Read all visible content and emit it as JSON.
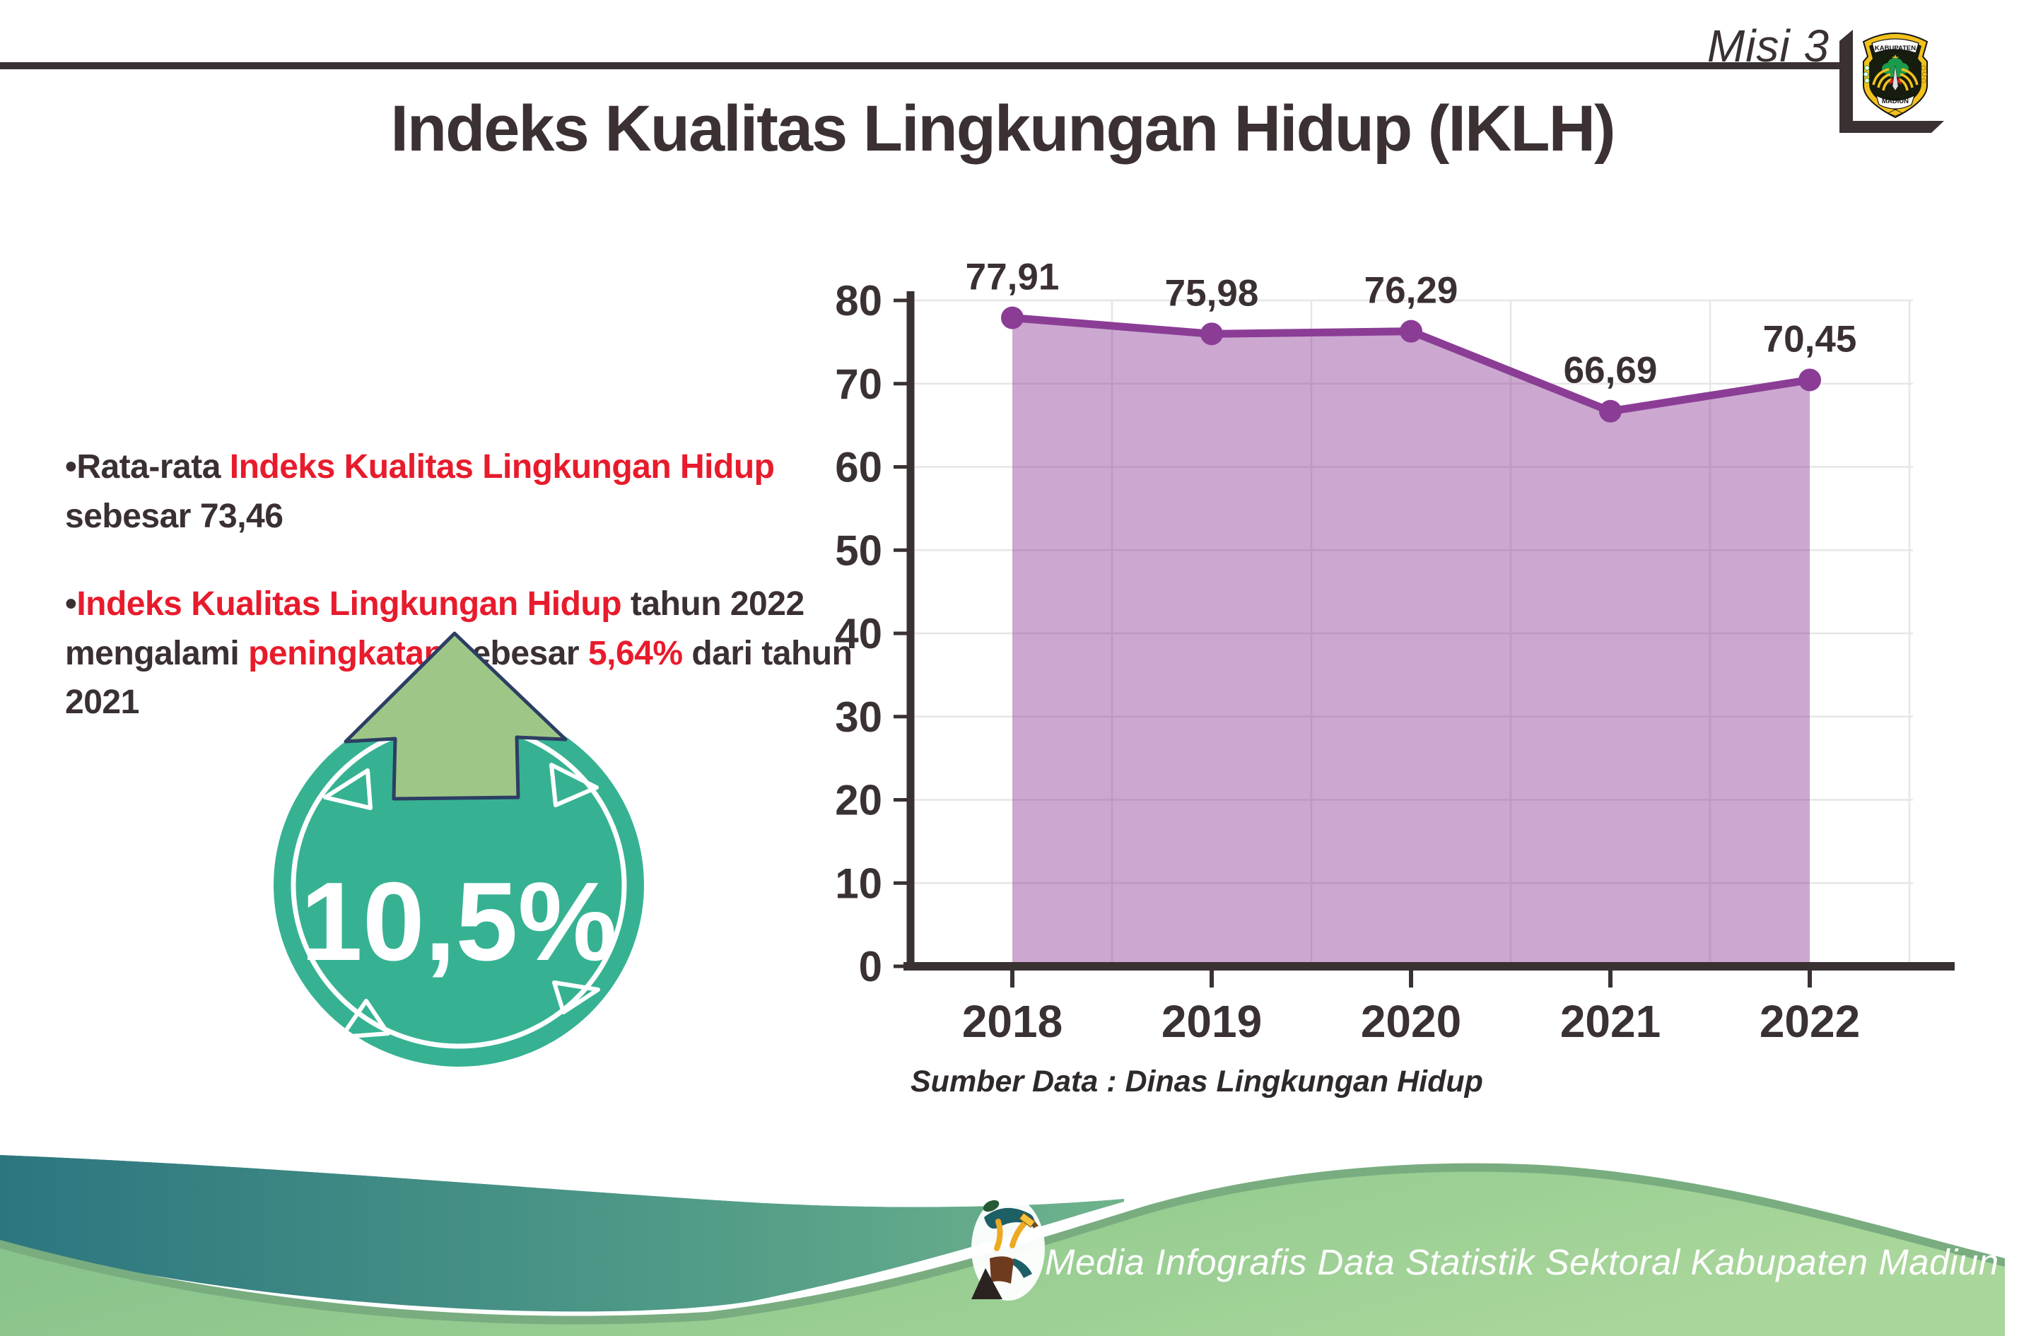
{
  "header": {
    "misi_label": "Misi 3",
    "title": "Indeks Kualitas Lingkungan Hidup (IKLH)",
    "logo": {
      "top_text": "KABUPATEN",
      "bottom_text": "MADIUN"
    }
  },
  "bullets": [
    {
      "segments": [
        {
          "text": "•",
          "red": false
        },
        {
          "text": "Rata-rata ",
          "red": false
        },
        {
          "text": "Indeks Kualitas Lingkungan Hidup",
          "red": true
        },
        {
          "text": " sebesar 73,46",
          "red": false
        }
      ]
    },
    {
      "segments": [
        {
          "text": "•",
          "red": false
        },
        {
          "text": "Indeks Kualitas Lingkungan Hidup",
          "red": true
        },
        {
          "text": " tahun 2022 mengalami ",
          "red": false
        },
        {
          "text": "peningkatan",
          "red": true
        },
        {
          "text": " sebesar ",
          "red": false
        },
        {
          "text": "5,64%",
          "red": true
        },
        {
          "text": " dari tahun 2021",
          "red": false
        }
      ]
    }
  ],
  "badge": {
    "percent": "10,5%"
  },
  "chart_data": {
    "type": "area",
    "title": "",
    "categories": [
      "2018",
      "2019",
      "2020",
      "2021",
      "2022"
    ],
    "series": [
      {
        "name": "IKLH",
        "values": [
          77.91,
          75.98,
          76.29,
          66.69,
          70.45
        ]
      }
    ],
    "value_labels": [
      "77,91",
      "75,98",
      "76,29",
      "66,69",
      "70,45"
    ],
    "ylim": [
      0,
      80
    ],
    "ytick_step": 10,
    "grid": true,
    "legend": false,
    "line_color": "#8b3d96",
    "fill_color": "rgba(142,63,150,0.45)",
    "axis_color": "#3a3132",
    "grid_color": "#e6e6e6",
    "source_note": "Sumber Data : Dinas Lingkungan Hidup"
  },
  "colors": {
    "accent_red": "#e81b2c",
    "text_dark": "#3a3032",
    "badge_teal": "#36b293",
    "arrow_green": "#9ec787",
    "arrow_outline": "#2d3e63",
    "footer_teal": "#2c7680",
    "footer_green": "#94cb90"
  },
  "footer": {
    "credit": "Media Infografis Data Statistik Sektoral Kabupaten Madiun |"
  }
}
